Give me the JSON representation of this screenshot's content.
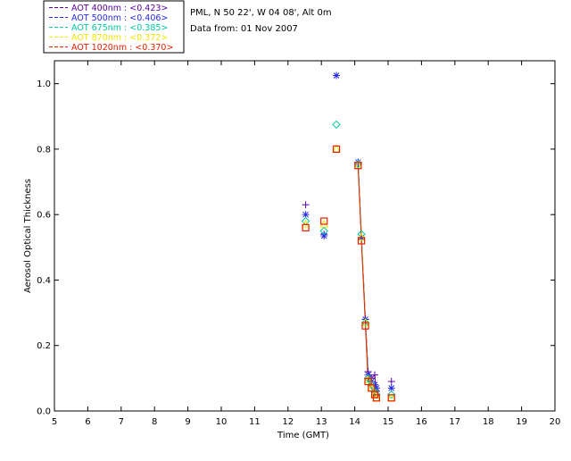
{
  "header": {
    "site": "PML, N 50 22', W 04 08', Alt 0m",
    "date_line": "Data from: 01 Nov 2007"
  },
  "chart_data": {
    "type": "scatter",
    "title": "",
    "xlabel": "Time (GMT)",
    "ylabel": "Aerosol Optical Thickness",
    "xlim": [
      5,
      20
    ],
    "ylim": [
      0.0,
      1.07
    ],
    "xticks": [
      5,
      6,
      7,
      8,
      9,
      10,
      11,
      12,
      13,
      14,
      15,
      16,
      17,
      18,
      19,
      20
    ],
    "yticks": [
      0.0,
      0.2,
      0.4,
      0.6,
      0.8,
      1.0
    ],
    "ytick_labels": [
      "0.0",
      "0.2",
      "0.4",
      "0.6",
      "0.8",
      "1.0"
    ],
    "legend_position": "top-left outside",
    "series": [
      {
        "name": "AOT 400nm",
        "legend_label": "AOT  400nm : <0.423>",
        "color": "#5a00a0",
        "marker": "plus",
        "x": [
          12.53,
          13.08,
          14.1,
          14.2,
          14.32,
          14.4,
          14.5,
          14.6,
          14.65,
          15.1
        ],
        "values": [
          0.63,
          0.54,
          0.76,
          0.53,
          0.28,
          0.12,
          0.1,
          0.11,
          0.06,
          0.09
        ]
      },
      {
        "name": "AOT 500nm",
        "legend_label": "AOT  500nm : <0.406>",
        "color": "#2828e6",
        "marker": "asterisk",
        "x": [
          12.53,
          13.08,
          13.45,
          14.1,
          14.2,
          14.32,
          14.4,
          14.5,
          14.6,
          14.65,
          15.1
        ],
        "values": [
          0.6,
          0.535,
          1.025,
          0.76,
          0.53,
          0.28,
          0.11,
          0.09,
          0.08,
          0.07,
          0.07
        ]
      },
      {
        "name": "AOT 675nm",
        "legend_label": "AOT  675nm : <0.385>",
        "color": "#00c8a0",
        "marker": "diamond",
        "x": [
          12.53,
          13.08,
          13.45,
          14.1,
          14.2,
          14.32,
          14.4,
          14.5,
          14.6,
          14.65,
          15.1
        ],
        "values": [
          0.58,
          0.55,
          0.875,
          0.755,
          0.54,
          0.27,
          0.1,
          0.08,
          0.06,
          0.05,
          0.05
        ]
      },
      {
        "name": "AOT 870nm",
        "legend_label": "AOT  870nm : <0.372>",
        "color": "#f0e600",
        "marker": "triangle",
        "x": [
          12.53,
          13.08,
          13.45,
          14.1,
          14.2,
          14.32,
          14.4,
          14.5,
          14.6,
          14.65,
          15.1
        ],
        "values": [
          0.57,
          0.57,
          0.8,
          0.75,
          0.53,
          0.27,
          0.095,
          0.07,
          0.05,
          0.04,
          0.04
        ]
      },
      {
        "name": "AOT 1020nm",
        "legend_label": "AOT 1020nm : <0.370>",
        "color": "#e61e00",
        "marker": "square",
        "x": [
          12.53,
          13.08,
          13.45,
          14.1,
          14.2,
          14.32,
          14.4,
          14.5,
          14.6,
          14.65,
          15.1
        ],
        "values": [
          0.56,
          0.58,
          0.8,
          0.75,
          0.52,
          0.26,
          0.09,
          0.07,
          0.05,
          0.04,
          0.04
        ]
      }
    ]
  }
}
